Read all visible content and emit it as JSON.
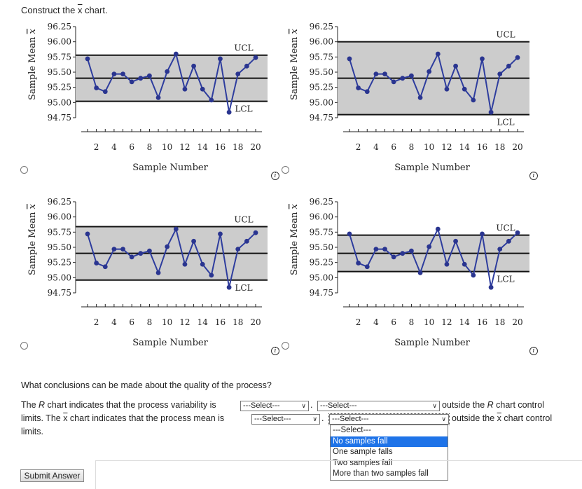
{
  "prompt": {
    "prefix": "Construct the ",
    "x": "x",
    "suffix": " chart."
  },
  "chart_common": {
    "xlabel": "Sample Number",
    "ylabel": "Sample Mean",
    "ylabel_sym": "x",
    "yticks": [
      "96.25",
      "96.00",
      "95.75",
      "95.50",
      "95.25",
      "95.00",
      "94.75"
    ],
    "xticks": [
      "2",
      "4",
      "6",
      "8",
      "10",
      "12",
      "14",
      "16",
      "18",
      "20"
    ],
    "ucl_label": "UCL",
    "lcl_label": "LCL",
    "fill_color": "#cccccc",
    "line_color": "#2e3d9e",
    "point_color": "#2a3590"
  },
  "chart_data": [
    {
      "type": "line",
      "id": "A",
      "ylim": [
        94.75,
        96.25
      ],
      "x": [
        1,
        2,
        3,
        4,
        5,
        6,
        7,
        8,
        9,
        10,
        11,
        12,
        13,
        14,
        15,
        16,
        17,
        18,
        19,
        20
      ],
      "values": [
        95.72,
        95.24,
        95.18,
        95.47,
        95.47,
        95.34,
        95.4,
        95.44,
        95.08,
        95.51,
        95.8,
        95.22,
        95.6,
        95.22,
        95.04,
        95.72,
        94.84,
        95.47,
        95.6,
        95.74
      ],
      "ucl": 95.78,
      "center": 95.4,
      "lcl": 95.02
    },
    {
      "type": "line",
      "id": "B",
      "ylim": [
        94.75,
        96.25
      ],
      "x": [
        1,
        2,
        3,
        4,
        5,
        6,
        7,
        8,
        9,
        10,
        11,
        12,
        13,
        14,
        15,
        16,
        17,
        18,
        19,
        20
      ],
      "values": [
        95.72,
        95.24,
        95.18,
        95.47,
        95.47,
        95.34,
        95.4,
        95.44,
        95.08,
        95.51,
        95.8,
        95.22,
        95.6,
        95.22,
        95.04,
        95.72,
        94.84,
        95.47,
        95.6,
        95.74
      ],
      "ucl": 96.0,
      "center": 95.4,
      "lcl": 94.8
    },
    {
      "type": "line",
      "id": "C",
      "ylim": [
        94.75,
        96.25
      ],
      "x": [
        1,
        2,
        3,
        4,
        5,
        6,
        7,
        8,
        9,
        10,
        11,
        12,
        13,
        14,
        15,
        16,
        17,
        18,
        19,
        20
      ],
      "values": [
        95.72,
        95.24,
        95.18,
        95.47,
        95.47,
        95.34,
        95.4,
        95.44,
        95.08,
        95.51,
        95.8,
        95.22,
        95.6,
        95.22,
        95.04,
        95.72,
        94.84,
        95.47,
        95.6,
        95.74
      ],
      "ucl": 95.84,
      "center": 95.4,
      "lcl": 94.96
    },
    {
      "type": "line",
      "id": "D",
      "ylim": [
        94.75,
        96.25
      ],
      "x": [
        1,
        2,
        3,
        4,
        5,
        6,
        7,
        8,
        9,
        10,
        11,
        12,
        13,
        14,
        15,
        16,
        17,
        18,
        19,
        20
      ],
      "values": [
        95.72,
        95.24,
        95.18,
        95.47,
        95.47,
        95.34,
        95.4,
        95.44,
        95.08,
        95.51,
        95.8,
        95.22,
        95.6,
        95.22,
        95.04,
        95.72,
        94.84,
        95.47,
        95.6,
        95.74
      ],
      "ucl": 95.7,
      "center": 95.4,
      "lcl": 95.1
    }
  ],
  "question": "What conclusions can be made about the quality of the process?",
  "line1": {
    "pre_r": "The ",
    "r": "R",
    "mid": " chart indicates that the process variability is",
    "dot": ".",
    "post_pre": "outside the ",
    "post_r": "R",
    "post_end": " chart control"
  },
  "line2": {
    "pre": "limits. The ",
    "x": "x",
    "mid": " chart indicates that the process mean is",
    "dot": ".",
    "post_pre": "outside the ",
    "post_x": "x",
    "post_end": " chart control"
  },
  "line3": "limits.",
  "selects": {
    "s1": "---Select---",
    "s2": "---Select---",
    "s3": "---Select---",
    "s4": "---Select---"
  },
  "dropdown_options": [
    "---Select---",
    "No samples fall",
    "One sample falls",
    "Two samples fall",
    "More than two samples fall"
  ],
  "submit_label": "Submit Answer",
  "info_glyph": "i"
}
